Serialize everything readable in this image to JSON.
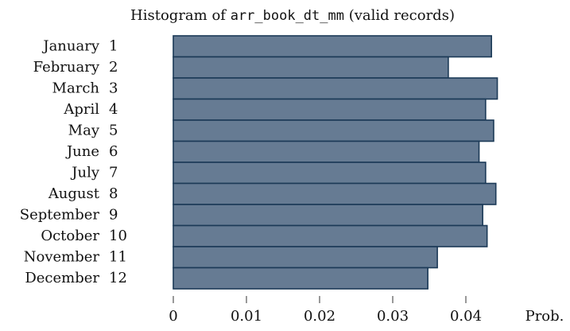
{
  "chart_data": {
    "type": "bar",
    "orientation": "horizontal",
    "title": {
      "prefix": "Histogram of",
      "variable": "arr_book_dt_mm",
      "suffix": "(valid records)"
    },
    "xlabel": "Prob.",
    "categories": [
      "January",
      "February",
      "March",
      "April",
      "May",
      "June",
      "July",
      "August",
      "September",
      "October",
      "November",
      "December"
    ],
    "category_codes": [
      1,
      2,
      3,
      4,
      5,
      6,
      7,
      8,
      9,
      10,
      11,
      12
    ],
    "values": [
      0.0435,
      0.0376,
      0.0443,
      0.0427,
      0.0438,
      0.0418,
      0.0427,
      0.0441,
      0.0423,
      0.0429,
      0.0361,
      0.0348
    ],
    "color": "#667b93",
    "edge_color": "#1c3a57",
    "xlim": [
      0,
      0.054
    ],
    "xticks": [
      0,
      0.01,
      0.02,
      0.03,
      0.04
    ]
  }
}
